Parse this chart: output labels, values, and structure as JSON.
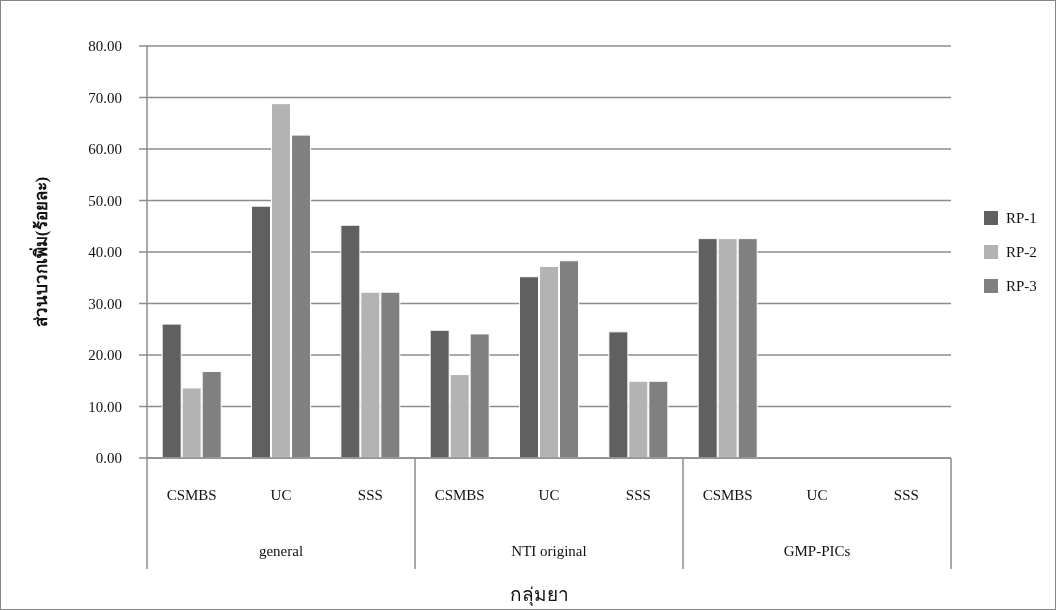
{
  "chart_data": {
    "type": "bar",
    "xlabel": "กลุ่มยา",
    "ylabel": "ส่วนบวกเพิ่ม(ร้อยละ)",
    "categories": [
      "CSMBS",
      "UC",
      "SSS",
      "CSMBS",
      "UC",
      "SSS",
      "CSMBS",
      "UC",
      "SSS"
    ],
    "annotations": [
      "general",
      "NTI original",
      "GMP-PICs"
    ],
    "series": [
      {
        "name": "RP-1",
        "color": "#606060",
        "values": [
          26.0,
          48.9,
          45.2,
          24.8,
          35.2,
          24.5,
          42.6,
          null,
          null
        ]
      },
      {
        "name": "RP-2",
        "color": "#b3b3b3",
        "values": [
          13.6,
          68.8,
          32.2,
          16.2,
          37.2,
          14.9,
          42.6,
          null,
          null
        ]
      },
      {
        "name": "RP-3",
        "color": "#808080",
        "values": [
          16.8,
          62.7,
          32.2,
          24.1,
          38.3,
          14.9,
          42.6,
          null,
          null
        ]
      }
    ],
    "ylim": [
      0,
      80
    ],
    "yticks": [
      {
        "value": 0,
        "label": "0.00"
      },
      {
        "value": 10,
        "label": "10.00"
      },
      {
        "value": 20,
        "label": "20.00"
      },
      {
        "value": 30,
        "label": "30.00"
      },
      {
        "value": 40,
        "label": "40.00"
      },
      {
        "value": 50,
        "label": "50.00"
      },
      {
        "value": 60,
        "label": "60.00"
      },
      {
        "value": 70,
        "label": "70.00"
      },
      {
        "value": 80,
        "label": "80.00"
      }
    ],
    "grid": "y",
    "legend": "right"
  }
}
